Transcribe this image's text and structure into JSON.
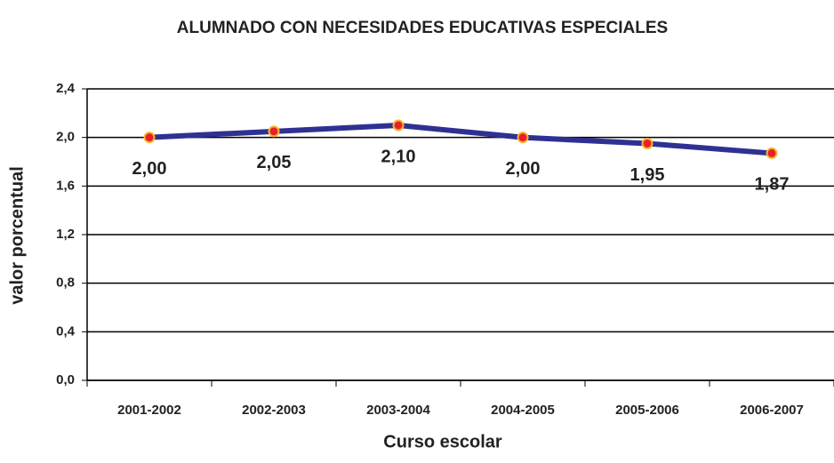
{
  "chart_data": {
    "type": "line",
    "title": "ALUMNADO CON NECESIDADES EDUCATIVAS ESPECIALES",
    "x_label": "Curso escolar",
    "y_label": "valor porcentual",
    "categories": [
      "2001-2002",
      "2002-2003",
      "2003-2004",
      "2004-2005",
      "2005-2006",
      "2006-2007"
    ],
    "series": [
      {
        "name": "valor porcentual",
        "color": "#2e3192",
        "marker_color": "#e8202a",
        "marker_edge": "#f7b52c",
        "values": [
          2.0,
          2.05,
          2.1,
          2.0,
          1.95,
          1.87
        ],
        "value_labels": [
          "2,00",
          "2,05",
          "2,10",
          "2,00",
          "1,95",
          "1,87"
        ]
      }
    ],
    "ylim": [
      0,
      2.4
    ],
    "yticks": [
      {
        "value": 0,
        "label": "0,0"
      },
      {
        "value": 0.4,
        "label": "0,4"
      },
      {
        "value": 0.8,
        "label": "0,8"
      },
      {
        "value": 1.2,
        "label": "1,2"
      },
      {
        "value": 1.6,
        "label": "1,6"
      },
      {
        "value": 2.0,
        "label": "2,0"
      },
      {
        "value": 2.4,
        "label": "2,4"
      }
    ],
    "grid": true
  }
}
